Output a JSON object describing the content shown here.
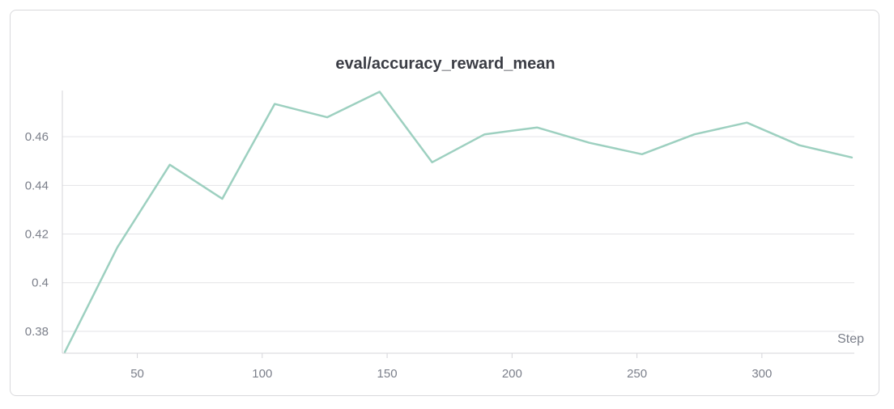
{
  "chart_data": {
    "type": "line",
    "title": "eval/accuracy_reward_mean",
    "xlabel": "Step",
    "ylabel": "",
    "xlim": [
      20,
      337
    ],
    "ylim": [
      0.371,
      0.479
    ],
    "x_ticks": [
      50,
      100,
      150,
      200,
      250,
      300
    ],
    "y_ticks": [
      0.38,
      0.4,
      0.42,
      0.44,
      0.46
    ],
    "y_tick_labels": [
      "0.38",
      "0.4",
      "0.42",
      "0.44",
      "0.46"
    ],
    "grid": true,
    "legend": "none",
    "series": [
      {
        "color": "#9dd0c0",
        "x": [
          21,
          42,
          63,
          84,
          105,
          126,
          147,
          168,
          189,
          210,
          231,
          252,
          273,
          294,
          315,
          336
        ],
        "y": [
          0.3715,
          0.4145,
          0.4485,
          0.4345,
          0.4735,
          0.468,
          0.4785,
          0.4495,
          0.461,
          0.4638,
          0.4575,
          0.4528,
          0.461,
          0.4658,
          0.4565,
          0.4515
        ]
      }
    ]
  }
}
